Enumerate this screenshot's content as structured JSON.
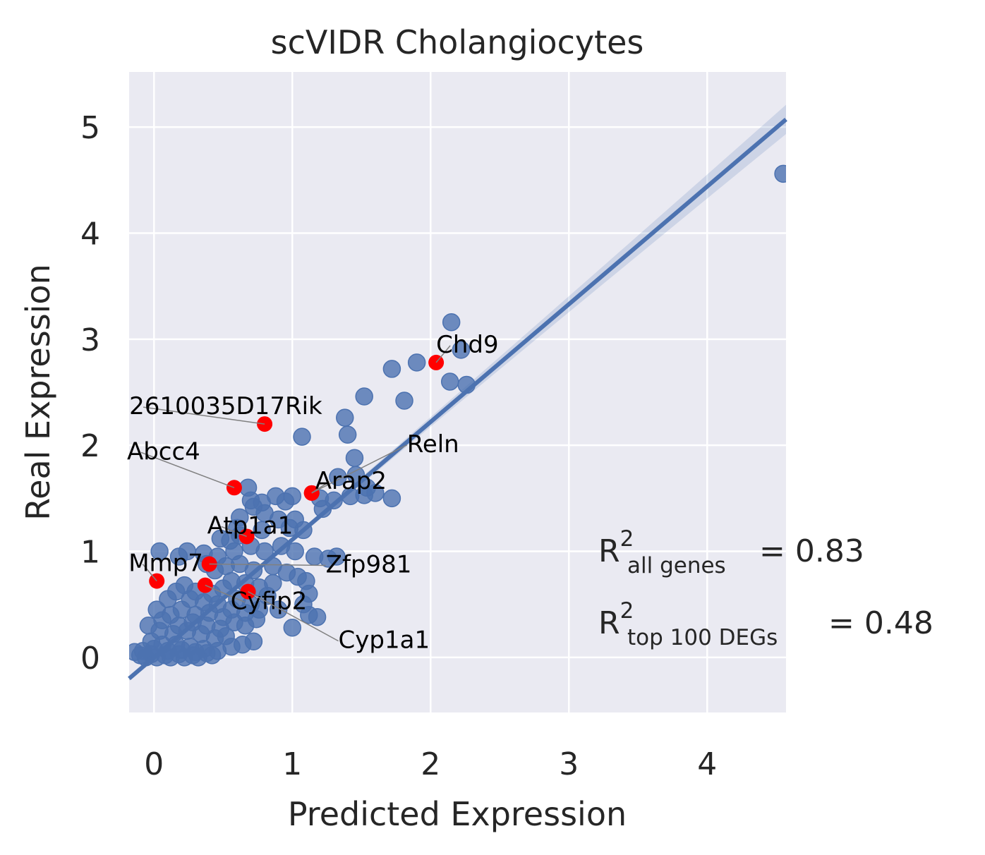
{
  "chart_data": {
    "type": "scatter",
    "title": "scVIDR Cholangiocytes",
    "xlabel": "Predicted Expression",
    "ylabel": "Real Expression",
    "xlim": [
      -0.18,
      4.57
    ],
    "ylim": [
      -0.52,
      5.52
    ],
    "xticks": [
      "0",
      "1",
      "2",
      "3",
      "4"
    ],
    "yticks": [
      "0",
      "1",
      "2",
      "3",
      "4",
      "5"
    ],
    "grid": true,
    "regression_line": {
      "slope": 1.11,
      "intercept": 0.0
    },
    "colors": {
      "points": "#4c72b0",
      "highlight": "#ff0000",
      "background": "#eaeaf2",
      "grid": "#ffffff"
    },
    "points": [
      {
        "x": 4.55,
        "y": 4.56
      },
      {
        "x": 2.15,
        "y": 3.16
      },
      {
        "x": 2.22,
        "y": 2.9
      },
      {
        "x": 1.9,
        "y": 2.78
      },
      {
        "x": 1.72,
        "y": 2.72
      },
      {
        "x": 2.14,
        "y": 2.6
      },
      {
        "x": 2.26,
        "y": 2.57
      },
      {
        "x": 1.52,
        "y": 2.46
      },
      {
        "x": 1.81,
        "y": 2.42
      },
      {
        "x": 1.38,
        "y": 2.26
      },
      {
        "x": 1.4,
        "y": 2.1
      },
      {
        "x": 1.07,
        "y": 2.08
      },
      {
        "x": 1.45,
        "y": 1.88
      },
      {
        "x": 1.46,
        "y": 1.72
      },
      {
        "x": 1.33,
        "y": 1.7
      },
      {
        "x": 1.54,
        "y": 1.6
      },
      {
        "x": 1.72,
        "y": 1.5
      },
      {
        "x": 1.6,
        "y": 1.55
      },
      {
        "x": 1.52,
        "y": 1.53
      },
      {
        "x": 1.42,
        "y": 1.52
      },
      {
        "x": 1.3,
        "y": 1.48
      },
      {
        "x": 1.2,
        "y": 1.5
      },
      {
        "x": 1.22,
        "y": 1.4
      },
      {
        "x": 1.0,
        "y": 1.52
      },
      {
        "x": 0.95,
        "y": 1.47
      },
      {
        "x": 0.88,
        "y": 1.52
      },
      {
        "x": 0.78,
        "y": 1.46
      },
      {
        "x": 0.68,
        "y": 1.6
      },
      {
        "x": 0.7,
        "y": 1.48
      },
      {
        "x": 0.72,
        "y": 1.42
      },
      {
        "x": 0.8,
        "y": 1.36
      },
      {
        "x": 0.9,
        "y": 1.3
      },
      {
        "x": 1.02,
        "y": 1.3
      },
      {
        "x": 1.08,
        "y": 1.2
      },
      {
        "x": 0.98,
        "y": 1.22
      },
      {
        "x": 0.62,
        "y": 1.32
      },
      {
        "x": 0.6,
        "y": 1.22
      },
      {
        "x": 0.55,
        "y": 1.1
      },
      {
        "x": 0.48,
        "y": 1.12
      },
      {
        "x": 0.58,
        "y": 1.0
      },
      {
        "x": 0.7,
        "y": 1.05
      },
      {
        "x": 0.8,
        "y": 1.0
      },
      {
        "x": 0.92,
        "y": 1.05
      },
      {
        "x": 1.02,
        "y": 1.0
      },
      {
        "x": 1.16,
        "y": 0.95
      },
      {
        "x": 1.26,
        "y": 0.93
      },
      {
        "x": 1.32,
        "y": 0.95
      },
      {
        "x": 0.24,
        "y": 1.0
      },
      {
        "x": 0.04,
        "y": 1.0
      },
      {
        "x": 0.18,
        "y": 0.95
      },
      {
        "x": 0.38,
        "y": 0.88
      },
      {
        "x": 0.44,
        "y": 0.82
      },
      {
        "x": 0.52,
        "y": 0.86
      },
      {
        "x": 0.62,
        "y": 0.88
      },
      {
        "x": 0.72,
        "y": 0.82
      },
      {
        "x": 0.86,
        "y": 0.86
      },
      {
        "x": 0.96,
        "y": 0.8
      },
      {
        "x": 1.04,
        "y": 0.76
      },
      {
        "x": 1.1,
        "y": 0.72
      },
      {
        "x": 1.12,
        "y": 0.6
      },
      {
        "x": 1.08,
        "y": 0.5
      },
      {
        "x": 1.12,
        "y": 0.4
      },
      {
        "x": 1.18,
        "y": 0.38
      },
      {
        "x": 1.0,
        "y": 0.28
      },
      {
        "x": 0.74,
        "y": 0.36
      },
      {
        "x": 0.72,
        "y": 0.15
      },
      {
        "x": 0.22,
        "y": 0.68
      },
      {
        "x": 0.16,
        "y": 0.62
      },
      {
        "x": 0.1,
        "y": 0.55
      },
      {
        "x": 0.3,
        "y": 0.62
      },
      {
        "x": 0.42,
        "y": 0.6
      },
      {
        "x": 0.5,
        "y": 0.65
      },
      {
        "x": 0.6,
        "y": 0.55
      },
      {
        "x": 0.7,
        "y": 0.5
      },
      {
        "x": 0.82,
        "y": 0.58
      },
      {
        "x": 0.9,
        "y": 0.45
      },
      {
        "x": 0.02,
        "y": 0.45
      },
      {
        "x": 0.12,
        "y": 0.4
      },
      {
        "x": 0.2,
        "y": 0.45
      },
      {
        "x": 0.3,
        "y": 0.4
      },
      {
        "x": 0.4,
        "y": 0.42
      },
      {
        "x": 0.5,
        "y": 0.38
      },
      {
        "x": 0.58,
        "y": 0.33
      },
      {
        "x": 0.66,
        "y": 0.3
      },
      {
        "x": 0.52,
        "y": 0.2
      },
      {
        "x": 0.44,
        "y": 0.18
      },
      {
        "x": 0.34,
        "y": 0.22
      },
      {
        "x": 0.24,
        "y": 0.25
      },
      {
        "x": 0.14,
        "y": 0.22
      },
      {
        "x": 0.04,
        "y": 0.25
      },
      {
        "x": -0.04,
        "y": 0.3
      },
      {
        "x": -0.02,
        "y": 0.15
      },
      {
        "x": 0.06,
        "y": 0.12
      },
      {
        "x": 0.16,
        "y": 0.12
      },
      {
        "x": 0.26,
        "y": 0.1
      },
      {
        "x": 0.36,
        "y": 0.08
      },
      {
        "x": 0.46,
        "y": 0.06
      },
      {
        "x": 0.56,
        "y": 0.1
      },
      {
        "x": 0.64,
        "y": 0.12
      },
      {
        "x": -0.14,
        "y": 0.05
      },
      {
        "x": -0.1,
        "y": 0.02
      },
      {
        "x": -0.06,
        "y": 0.0
      },
      {
        "x": -0.02,
        "y": 0.03
      },
      {
        "x": 0.02,
        "y": 0.0
      },
      {
        "x": 0.08,
        "y": 0.02
      },
      {
        "x": 0.12,
        "y": 0.0
      },
      {
        "x": 0.18,
        "y": 0.03
      },
      {
        "x": 0.22,
        "y": 0.0
      },
      {
        "x": 0.28,
        "y": 0.02
      },
      {
        "x": 0.32,
        "y": 0.0
      },
      {
        "x": 0.38,
        "y": 0.04
      },
      {
        "x": 0.42,
        "y": 0.02
      },
      {
        "x": -0.08,
        "y": 0.06
      },
      {
        "x": 0.0,
        "y": 0.08
      },
      {
        "x": 0.1,
        "y": 0.06
      },
      {
        "x": 0.2,
        "y": 0.07
      },
      {
        "x": 0.3,
        "y": 0.05
      },
      {
        "x": 0.06,
        "y": 0.35
      },
      {
        "x": 0.18,
        "y": 0.3
      },
      {
        "x": 0.28,
        "y": 0.33
      },
      {
        "x": 0.38,
        "y": 0.3
      },
      {
        "x": 0.48,
        "y": 0.27
      },
      {
        "x": 0.36,
        "y": 0.52
      },
      {
        "x": 0.46,
        "y": 0.5
      },
      {
        "x": 0.56,
        "y": 0.45
      },
      {
        "x": 0.66,
        "y": 0.42
      },
      {
        "x": 0.76,
        "y": 0.45
      },
      {
        "x": 0.26,
        "y": 0.55
      },
      {
        "x": 0.56,
        "y": 0.72
      },
      {
        "x": 0.66,
        "y": 0.7
      },
      {
        "x": 0.76,
        "y": 0.66
      },
      {
        "x": 0.86,
        "y": 0.7
      },
      {
        "x": 0.46,
        "y": 0.95
      },
      {
        "x": 0.36,
        "y": 0.98
      },
      {
        "x": 0.62,
        "y": 1.15
      },
      {
        "x": 0.78,
        "y": 1.2
      }
    ],
    "highlighted": [
      {
        "gene": "Chd9",
        "x": 2.04,
        "y": 2.78
      },
      {
        "gene": "2610035D17Rik",
        "x": 0.8,
        "y": 2.2
      },
      {
        "gene": "Abcc4",
        "x": 0.58,
        "y": 1.6
      },
      {
        "gene": "Reln",
        "x": 1.14,
        "y": 1.55
      },
      {
        "gene": "Arap2",
        "x": 1.14,
        "y": 1.55
      },
      {
        "gene": "Atp1a1",
        "x": 0.67,
        "y": 1.14
      },
      {
        "gene": "Mmp7",
        "x": 0.02,
        "y": 0.72
      },
      {
        "gene": "Zfp981",
        "x": 0.4,
        "y": 0.88
      },
      {
        "gene": "Cyfip2",
        "x": 0.37,
        "y": 0.68
      },
      {
        "gene": "Cyp1a1",
        "x": 0.68,
        "y": 0.62
      }
    ],
    "annotations": {
      "r2_all_label": "R",
      "r2_all_sup": "2",
      "r2_all_sub": "all genes",
      "r2_all_value": "= 0.83",
      "r2_top_label": "R",
      "r2_top_sup": "2",
      "r2_top_sub": "top 100 DEGs",
      "r2_top_value": "= 0.48"
    }
  }
}
